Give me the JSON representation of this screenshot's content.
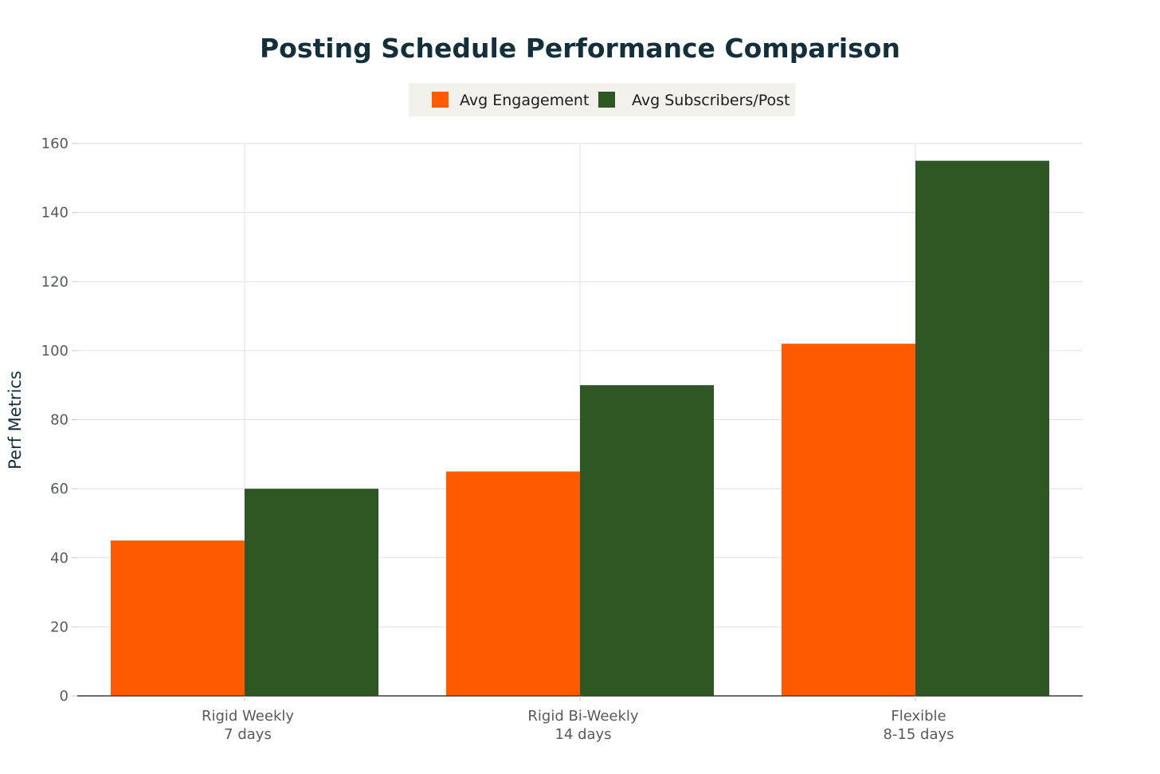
{
  "chart_data": {
    "type": "bar",
    "title": "Posting Schedule Performance Comparison",
    "xlabel": "",
    "ylabel": "Perf Metrics",
    "categories": [
      [
        "Rigid Weekly",
        "7 days"
      ],
      [
        "Rigid Bi-Weekly",
        "14 days"
      ],
      [
        "Flexible",
        "8-15 days"
      ]
    ],
    "series": [
      {
        "name": "Avg Engagement",
        "color": "#ff5a00",
        "values": [
          45,
          65,
          102
        ]
      },
      {
        "name": "Avg Subscribers/Post",
        "color": "#2e5723",
        "values": [
          60,
          90,
          155
        ]
      }
    ],
    "ylim": [
      0,
      160
    ],
    "yticks": [
      0,
      20,
      40,
      60,
      80,
      100,
      120,
      140,
      160
    ],
    "grid": true,
    "legend_position": "top-center",
    "colors": {
      "legend_background": "#f2f1ec",
      "gridline": "#e1e1e1",
      "axis_line": "#3c3c3c",
      "title": "#13303a"
    }
  }
}
